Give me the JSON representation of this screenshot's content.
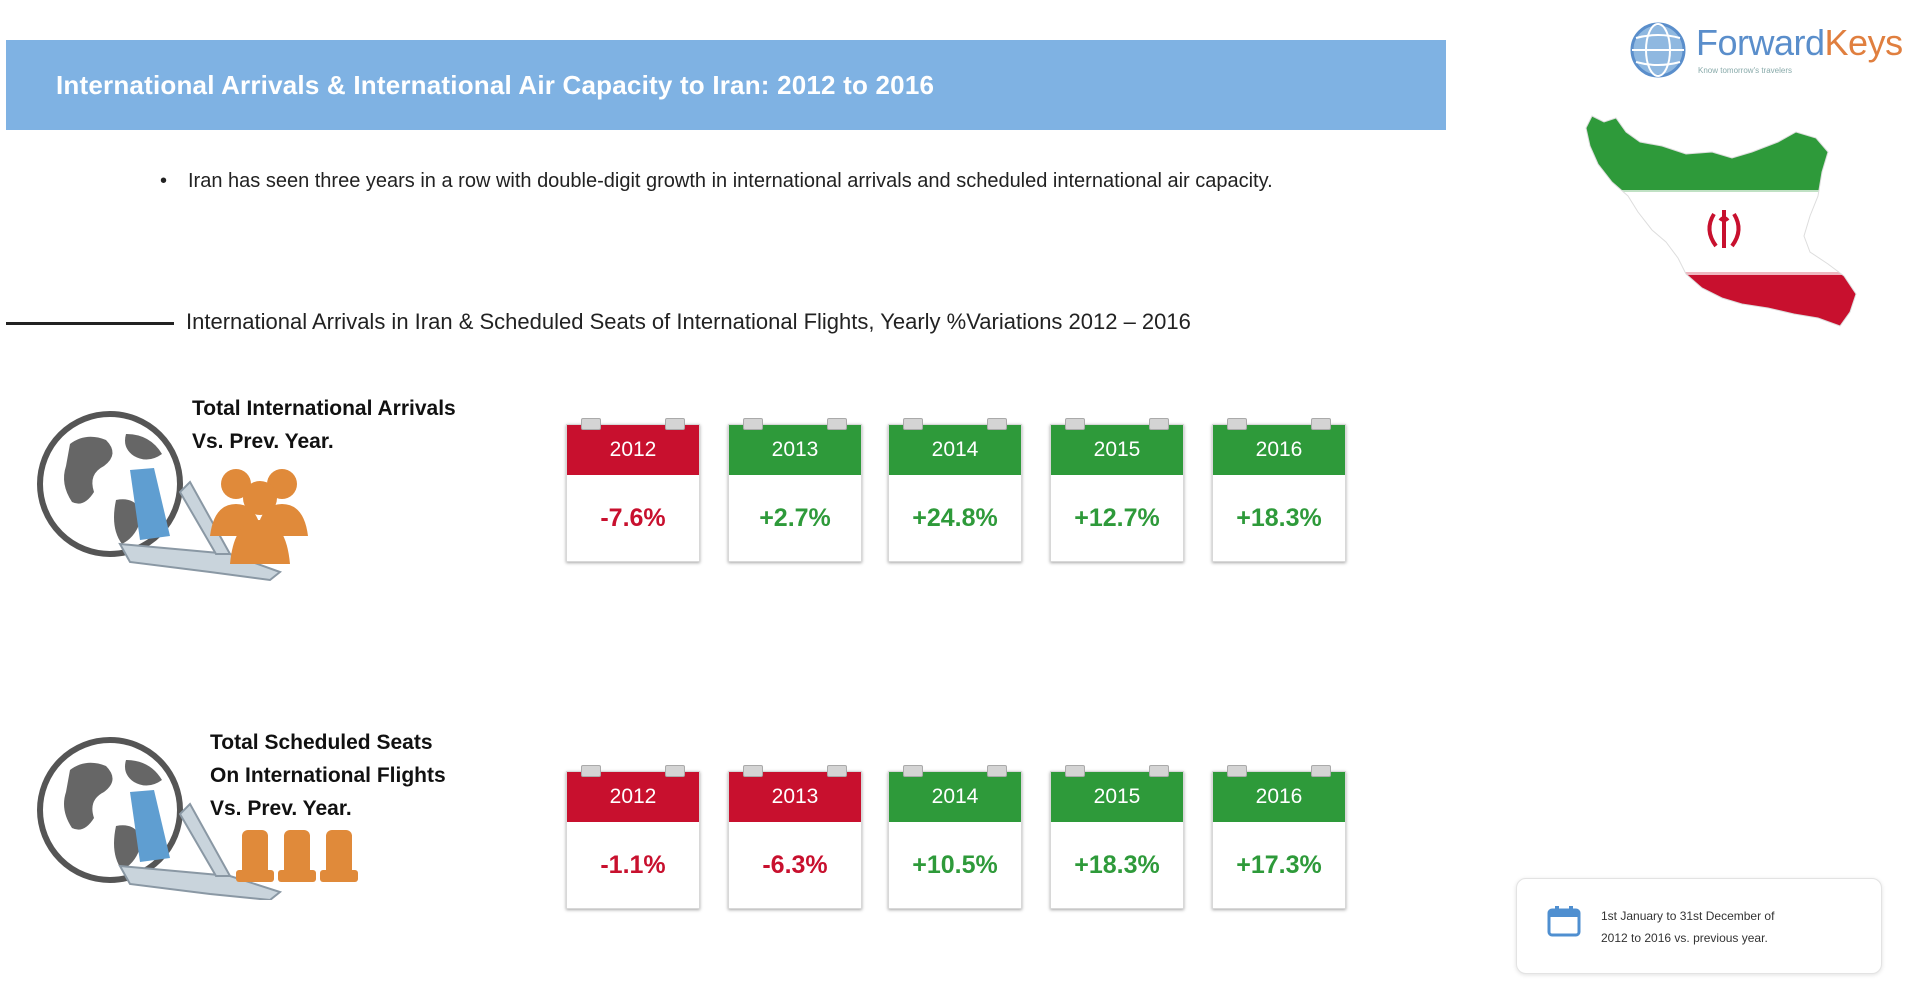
{
  "header": {
    "title": "International Arrivals & International Air Capacity to Iran:  2012 to 2016"
  },
  "logo": {
    "name_part1": "Forward",
    "name_part2": "Keys",
    "tagline": "Know tomorrow's travelers"
  },
  "bullet": {
    "text": "Iran has seen three years in a row with double-digit growth in international arrivals and scheduled international air capacity."
  },
  "section": {
    "subtitle": "International Arrivals in Iran & Scheduled Seats of International Flights, Yearly %Variations 2012 – 2016"
  },
  "colors": {
    "negative": "#c8102e",
    "positive": "#2e9a3a",
    "header_band": "#7fb2e3",
    "logo_blue": "#5a8ecb",
    "logo_orange": "#e07f3f",
    "icon_orange": "#e08a3a"
  },
  "rows": [
    {
      "label_line1": "Total International Arrivals",
      "label_line2": "Vs. Prev. Year.",
      "icon": "globe-plane-people-icon",
      "cards": [
        {
          "year": "2012",
          "value": "-7.6%",
          "trend": "negative"
        },
        {
          "year": "2013",
          "value": "+2.7%",
          "trend": "positive"
        },
        {
          "year": "2014",
          "value": "+24.8%",
          "trend": "positive"
        },
        {
          "year": "2015",
          "value": "+12.7%",
          "trend": "positive"
        },
        {
          "year": "2016",
          "value": "+18.3%",
          "trend": "positive"
        }
      ]
    },
    {
      "label_line1": "Total Scheduled Seats",
      "label_line2": "On International Flights",
      "label_line3": "Vs. Prev. Year.",
      "icon": "globe-plane-seats-icon",
      "cards": [
        {
          "year": "2012",
          "value": "-1.1%",
          "trend": "negative"
        },
        {
          "year": "2013",
          "value": "-6.3%",
          "trend": "negative"
        },
        {
          "year": "2014",
          "value": "+10.5%",
          "trend": "positive"
        },
        {
          "year": "2015",
          "value": "+18.3%",
          "trend": "positive"
        },
        {
          "year": "2016",
          "value": "+17.3%",
          "trend": "positive"
        }
      ]
    }
  ],
  "note": {
    "icon": "calendar-icon",
    "line1": "1st January to 31st December of",
    "line2": "2012 to 2016 vs. previous year."
  }
}
